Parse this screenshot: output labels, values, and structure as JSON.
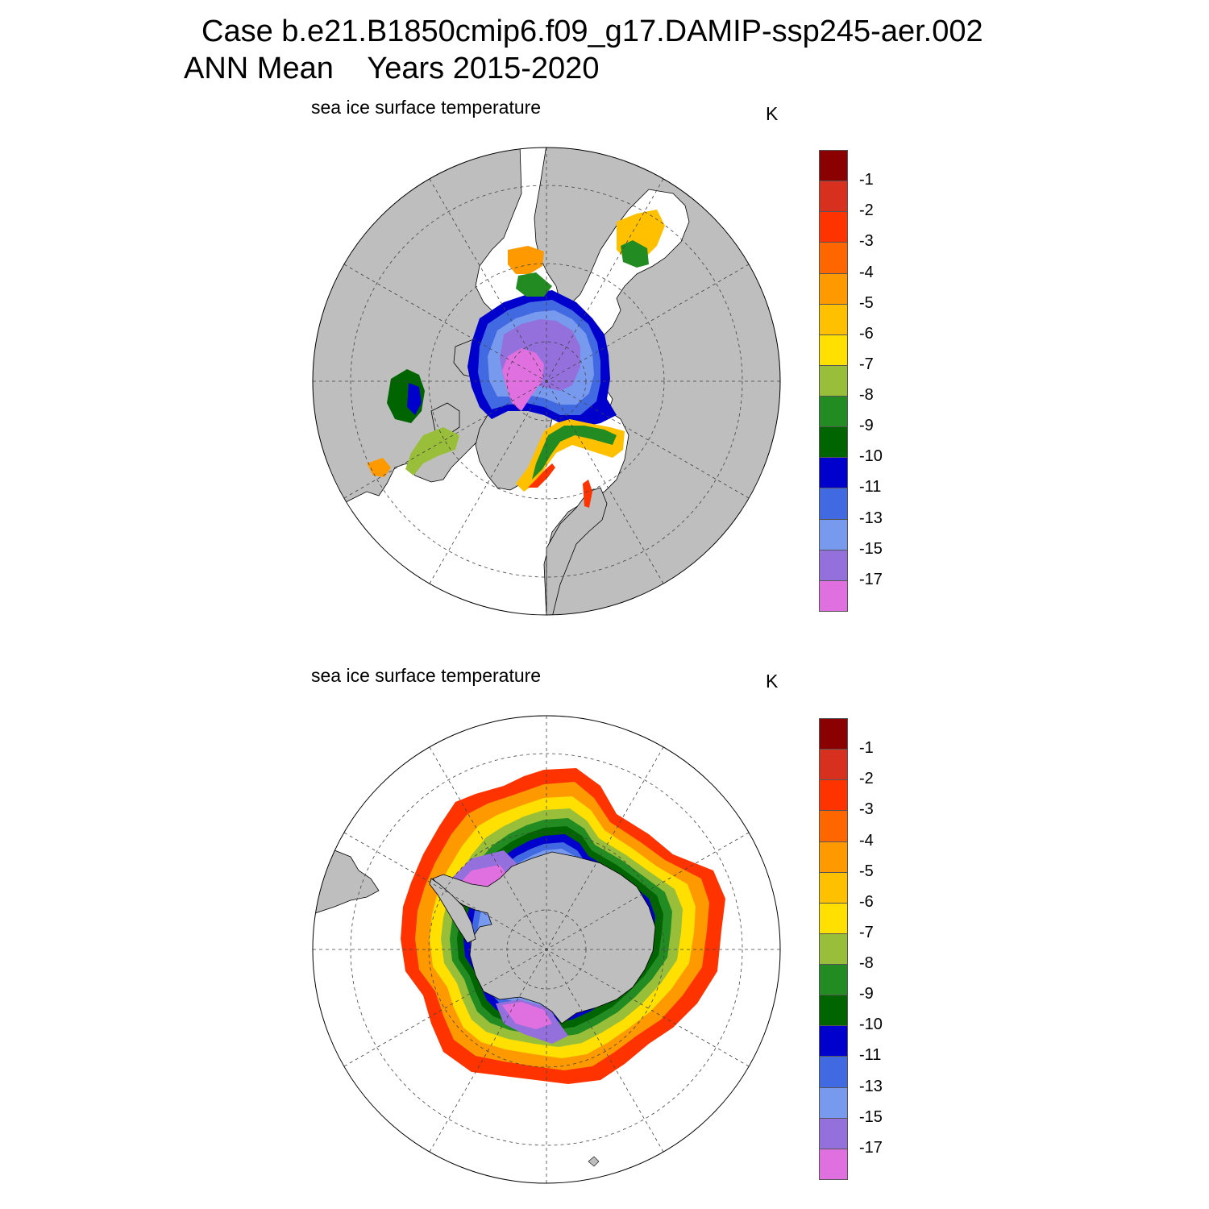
{
  "title": {
    "line1": "Case b.e21.B1850cmip6.f09_g17.DAMIP-ssp245-aer.002",
    "season": "ANN Mean",
    "years": "Years 2015-2020"
  },
  "panels": [
    {
      "id": "north",
      "hemisphere": "Northern Hemisphere polar stereographic",
      "title": "sea ice surface temperature",
      "units": "K"
    },
    {
      "id": "south",
      "hemisphere": "Southern Hemisphere polar stereographic",
      "title": "sea ice surface temperature",
      "units": "K"
    }
  ],
  "colorbar": {
    "labels": [
      "-1",
      "-2",
      "-3",
      "-4",
      "-5",
      "-6",
      "-7",
      "-8",
      "-9",
      "-10",
      "-11",
      "-13",
      "-15",
      "-17"
    ],
    "colors": [
      "#8b0000",
      "#d7301f",
      "#ff3300",
      "#ff6600",
      "#ff9900",
      "#ffc000",
      "#ffe000",
      "#99bf3a",
      "#228b22",
      "#006400",
      "#0000cd",
      "#4169e1",
      "#7799ee",
      "#9370db",
      "#e070e0"
    ]
  },
  "colors": {
    "land": "#bebebe",
    "ocean": "#ffffff",
    "coast": "#000000",
    "grid": "#444444"
  }
}
